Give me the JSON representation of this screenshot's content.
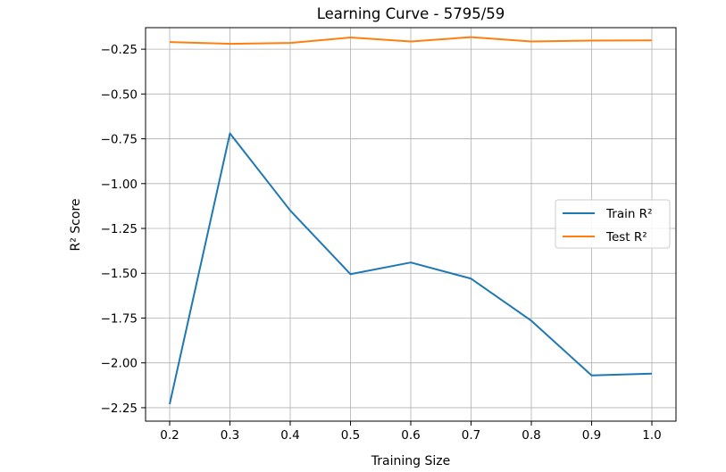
{
  "chart_data": {
    "type": "line",
    "title": "Learning Curve - 5795/59",
    "xlabel": "Training Size",
    "ylabel": "R² Score",
    "x": [
      0.2,
      0.3,
      0.4,
      0.5,
      0.6,
      0.7,
      0.8,
      0.9,
      1.0
    ],
    "xticks": [
      "0.2",
      "0.3",
      "0.4",
      "0.5",
      "0.6",
      "0.7",
      "0.8",
      "0.9",
      "1.0"
    ],
    "yticks": [
      "−0.25",
      "−0.50",
      "−0.75",
      "−1.00",
      "−1.25",
      "−1.50",
      "−1.75",
      "−2.00",
      "−2.25"
    ],
    "ytick_values": [
      -0.25,
      -0.5,
      -0.75,
      -1.0,
      -1.25,
      -1.5,
      -1.75,
      -2.0,
      -2.25
    ],
    "xlim": [
      0.16,
      1.04
    ],
    "ylim": [
      -2.325,
      -0.13
    ],
    "grid": true,
    "legend_position": "center-right",
    "series": [
      {
        "name": "Train R²",
        "color": "#1f77b4",
        "values": [
          -2.23,
          -0.72,
          -1.15,
          -1.505,
          -1.44,
          -1.53,
          -1.765,
          -2.07,
          -2.06
        ]
      },
      {
        "name": "Test R²",
        "color": "#ff7f0e",
        "values": [
          -0.21,
          -0.22,
          -0.215,
          -0.185,
          -0.207,
          -0.183,
          -0.207,
          -0.202,
          -0.201
        ]
      }
    ]
  }
}
